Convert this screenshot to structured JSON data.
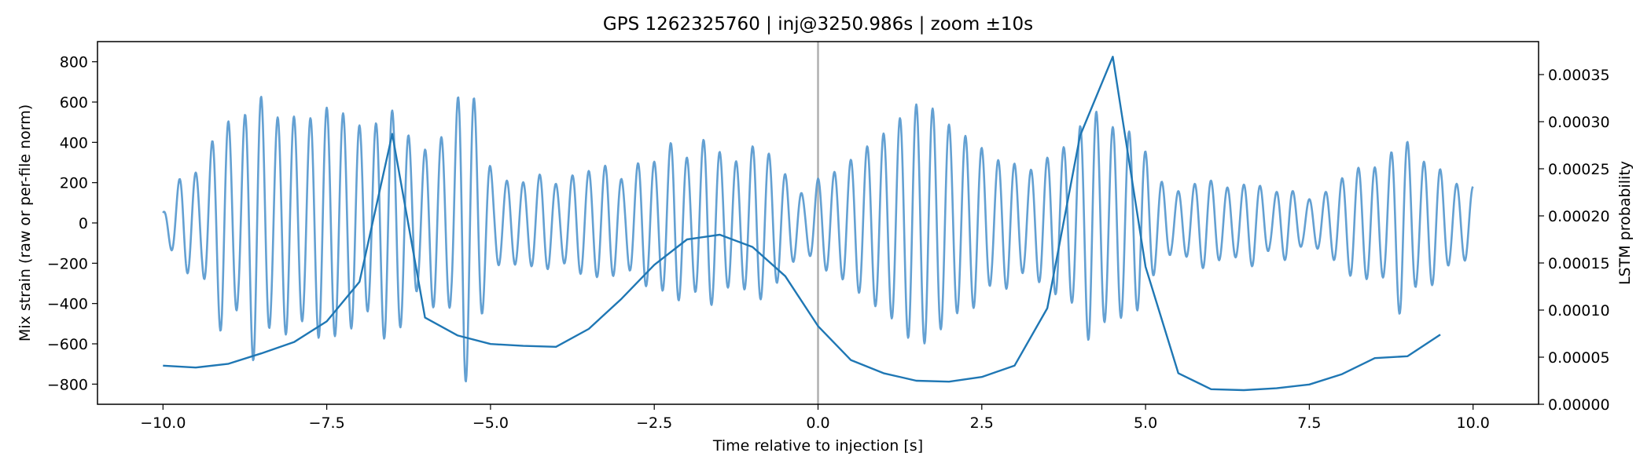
{
  "chart_data": {
    "type": "line",
    "title": "GPS 1262325760 | inj@3250.986s | zoom ±10s",
    "xlabel": "Time relative to injection [s]",
    "ylabel_left": "Mix strain (raw or per-file norm)",
    "ylabel_right": "LSTM probability",
    "xlim": [
      -11,
      11
    ],
    "ylim_left": [
      -900,
      900
    ],
    "ylim_right": [
      0.0,
      0.000385
    ],
    "x_ticks": [
      -10.0,
      -7.5,
      -5.0,
      -2.5,
      0.0,
      2.5,
      5.0,
      7.5,
      10.0
    ],
    "x_tick_labels": [
      "−10.0",
      "−7.5",
      "−5.0",
      "−2.5",
      "0.0",
      "2.5",
      "5.0",
      "7.5",
      "10.0"
    ],
    "y_left_ticks": [
      -800,
      -600,
      -400,
      -200,
      0,
      200,
      400,
      600,
      800
    ],
    "y_left_tick_labels": [
      "−800",
      "−600",
      "−400",
      "−200",
      "0",
      "200",
      "400",
      "600",
      "800"
    ],
    "y_right_ticks": [
      0.0,
      5e-05,
      0.0001,
      0.00015,
      0.0002,
      0.00025,
      0.0003,
      0.00035
    ],
    "y_right_tick_labels": [
      "0.00000",
      "0.00005",
      "0.00010",
      "0.00015",
      "0.00020",
      "0.00025",
      "0.00030",
      "0.00035"
    ],
    "vline_x": 0.0,
    "grid": false,
    "colors": {
      "strain": "#5b9bd0",
      "probability": "#1f77b4",
      "vline": "#b0b0b0"
    },
    "series": [
      {
        "axis": "left",
        "type": "oscillating_envelope",
        "frequency_hz": 4.0,
        "x_range": [
          -10.0,
          10.0
        ],
        "envelope": {
          "x": [
            -10.0,
            -9.7,
            -9.4,
            -9.1,
            -8.85,
            -8.6,
            -8.35,
            -8.1,
            -7.85,
            -7.6,
            -7.35,
            -7.1,
            -6.85,
            -6.6,
            -6.35,
            -6.1,
            -5.85,
            -5.6,
            -5.4,
            -5.2,
            -4.95,
            -4.7,
            -4.45,
            -4.2,
            -3.95,
            -3.7,
            -3.45,
            -3.2,
            -2.95,
            -2.7,
            -2.45,
            -2.2,
            -1.95,
            -1.7,
            -1.45,
            -1.2,
            -0.95,
            -0.7,
            -0.45,
            -0.2,
            0.0,
            0.3,
            0.6,
            0.9,
            1.15,
            1.4,
            1.65,
            1.9,
            2.15,
            2.4,
            2.65,
            2.9,
            3.15,
            3.4,
            3.65,
            3.9,
            4.15,
            4.4,
            4.65,
            4.9,
            5.15,
            5.4,
            5.65,
            5.9,
            6.15,
            6.4,
            6.65,
            6.9,
            7.15,
            7.4,
            7.65,
            7.9,
            8.15,
            8.4,
            8.65,
            8.9,
            9.15,
            9.4,
            9.65,
            10.0
          ],
          "y": [
            50,
            250,
            250,
            560,
            420,
            710,
            500,
            560,
            480,
            580,
            560,
            520,
            430,
            590,
            510,
            320,
            430,
            420,
            820,
            550,
            210,
            210,
            200,
            250,
            180,
            250,
            260,
            290,
            200,
            320,
            300,
            420,
            300,
            440,
            330,
            300,
            400,
            330,
            220,
            130,
            220,
            260,
            340,
            420,
            480,
            580,
            600,
            520,
            440,
            420,
            300,
            330,
            240,
            300,
            360,
            400,
            600,
            480,
            470,
            430,
            240,
            150,
            170,
            230,
            180,
            170,
            220,
            130,
            190,
            110,
            130,
            190,
            270,
            280,
            270,
            470,
            300,
            310,
            200,
            180
          ]
        }
      },
      {
        "axis": "right",
        "name": "",
        "x": [
          -10.0,
          -9.5,
          -9.0,
          -8.5,
          -8.0,
          -7.5,
          -7.0,
          -6.5,
          -6.0,
          -5.5,
          -5.0,
          -4.5,
          -4.0,
          -3.5,
          -3.0,
          -2.5,
          -2.0,
          -1.5,
          -1.0,
          -0.5,
          0.0,
          0.5,
          1.0,
          1.5,
          2.0,
          2.5,
          3.0,
          3.5,
          4.0,
          4.5,
          5.0,
          5.5,
          6.0,
          6.5,
          7.0,
          7.5,
          8.0,
          8.5,
          9.0,
          9.5
        ],
        "y": [
          4.1e-05,
          3.9e-05,
          4.3e-05,
          5.4e-05,
          6.6e-05,
          8.8e-05,
          0.00013,
          0.000287,
          9.2e-05,
          7.3e-05,
          6.4e-05,
          6.2e-05,
          6.1e-05,
          8e-05,
          0.000112,
          0.000148,
          0.000175,
          0.00018,
          0.000167,
          0.000136,
          8.3e-05,
          4.7e-05,
          3.3e-05,
          2.5e-05,
          2.4e-05,
          2.9e-05,
          4.1e-05,
          0.000102,
          0.000285,
          0.000369,
          0.000146,
          3.3e-05,
          1.6e-05,
          1.5e-05,
          1.7e-05,
          2.1e-05,
          3.2e-05,
          4.9e-05,
          5.1e-05,
          7.4e-05
        ]
      }
    ]
  }
}
